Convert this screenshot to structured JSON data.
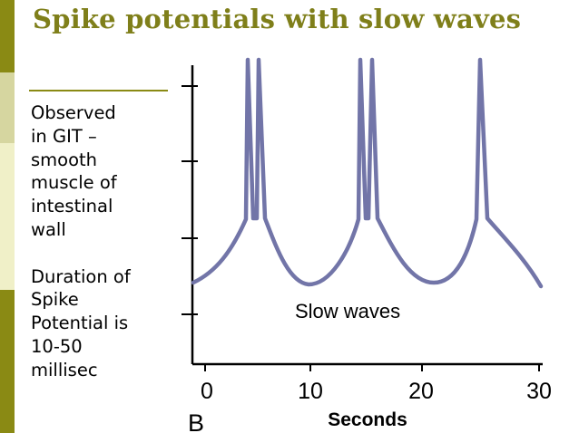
{
  "slide": {
    "title": "Spike potentials with slow waves",
    "bullets": [
      [
        "Observed",
        "in GIT –",
        "smooth",
        "muscle of",
        "intestinal",
        "wall"
      ],
      [
        "Duration of",
        "Spike",
        "Potential is",
        "10-50",
        "millisec"
      ]
    ]
  },
  "figure": {
    "label": "B",
    "annotation": "Slow waves",
    "x_ticks": [
      "0",
      "10",
      "20",
      "30"
    ],
    "x_axis_title": "Seconds",
    "line_color": "#7275a8"
  }
}
